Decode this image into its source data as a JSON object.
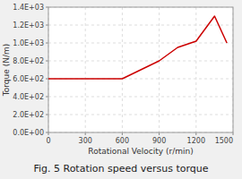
{
  "chart_data": {
    "type": "line",
    "title": "Fig. 5 Rotation speed versus torque",
    "xlabel": "Rotational Velocity (r/min)",
    "ylabel": "Torque (N/m)",
    "x": [
      0,
      150,
      300,
      450,
      600,
      750,
      900,
      1050,
      1200,
      1350,
      1450
    ],
    "values": [
      600,
      600,
      600,
      600,
      600,
      700,
      800,
      950,
      1020,
      1300,
      1000
    ],
    "color": "#cc0000",
    "xlim": [
      0,
      1500
    ],
    "ylim": [
      0,
      1400
    ],
    "xticks": [
      0,
      300,
      600,
      900,
      1200,
      1500
    ],
    "yticks": [
      {
        "value": 0,
        "label": "0.0E+00"
      },
      {
        "value": 200,
        "label": "2.0E+02"
      },
      {
        "value": 400,
        "label": "4.0E+02"
      },
      {
        "value": 600,
        "label": "6.0E+02"
      },
      {
        "value": 800,
        "label": "8.0E+02"
      },
      {
        "value": 1000,
        "label": "1.0E+03"
      },
      {
        "value": 1200,
        "label": "1.2E+03"
      },
      {
        "value": 1400,
        "label": "1.4E+03"
      }
    ],
    "grid": true
  }
}
